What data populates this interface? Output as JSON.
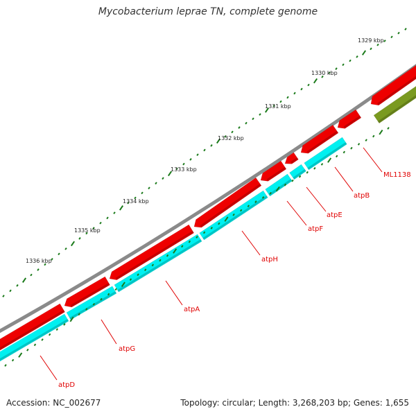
{
  "title": "Mycobacterium leprae TN, complete genome",
  "footer": {
    "accession": "Accession: NC_002677",
    "summary": "Topology: circular; Length: 3,268,203 bp; Genes: 1,655"
  },
  "scale_labels": [
    "1329 kbp",
    "1330 kbp",
    "1331 kbp",
    "1332 kbp",
    "1333 kbp",
    "1334 kbp",
    "1335 kbp",
    "1336 kbp"
  ],
  "genes": [
    {
      "name": "atpD",
      "strand": "reverse",
      "color": "#ee0000",
      "product_color": "#00f0f0"
    },
    {
      "name": "atpG",
      "strand": "reverse",
      "color": "#ee0000",
      "product_color": "#00f0f0"
    },
    {
      "name": "atpA",
      "strand": "reverse",
      "color": "#ee0000",
      "product_color": "#00f0f0"
    },
    {
      "name": "atpH",
      "strand": "reverse",
      "color": "#ee0000",
      "product_color": "#00f0f0"
    },
    {
      "name": "atpF",
      "strand": "reverse",
      "color": "#ee0000",
      "product_color": "#00f0f0"
    },
    {
      "name": "atpE",
      "strand": "reverse",
      "color": "#ee0000",
      "product_color": "#00f0f0"
    },
    {
      "name": "atpB",
      "strand": "reverse",
      "color": "#ee0000",
      "product_color": "#00f0f0"
    },
    {
      "name": "ML1138",
      "strand": "reverse",
      "color": "#ee0000",
      "product_color": "#7a9a20"
    }
  ],
  "colors": {
    "backbone": "#8a8a8a",
    "gene": "#ee0000",
    "protein": "#00f0f0",
    "other_feature": "#7a9a20",
    "ticks": "#1a7a1a",
    "label": "#e00000"
  }
}
